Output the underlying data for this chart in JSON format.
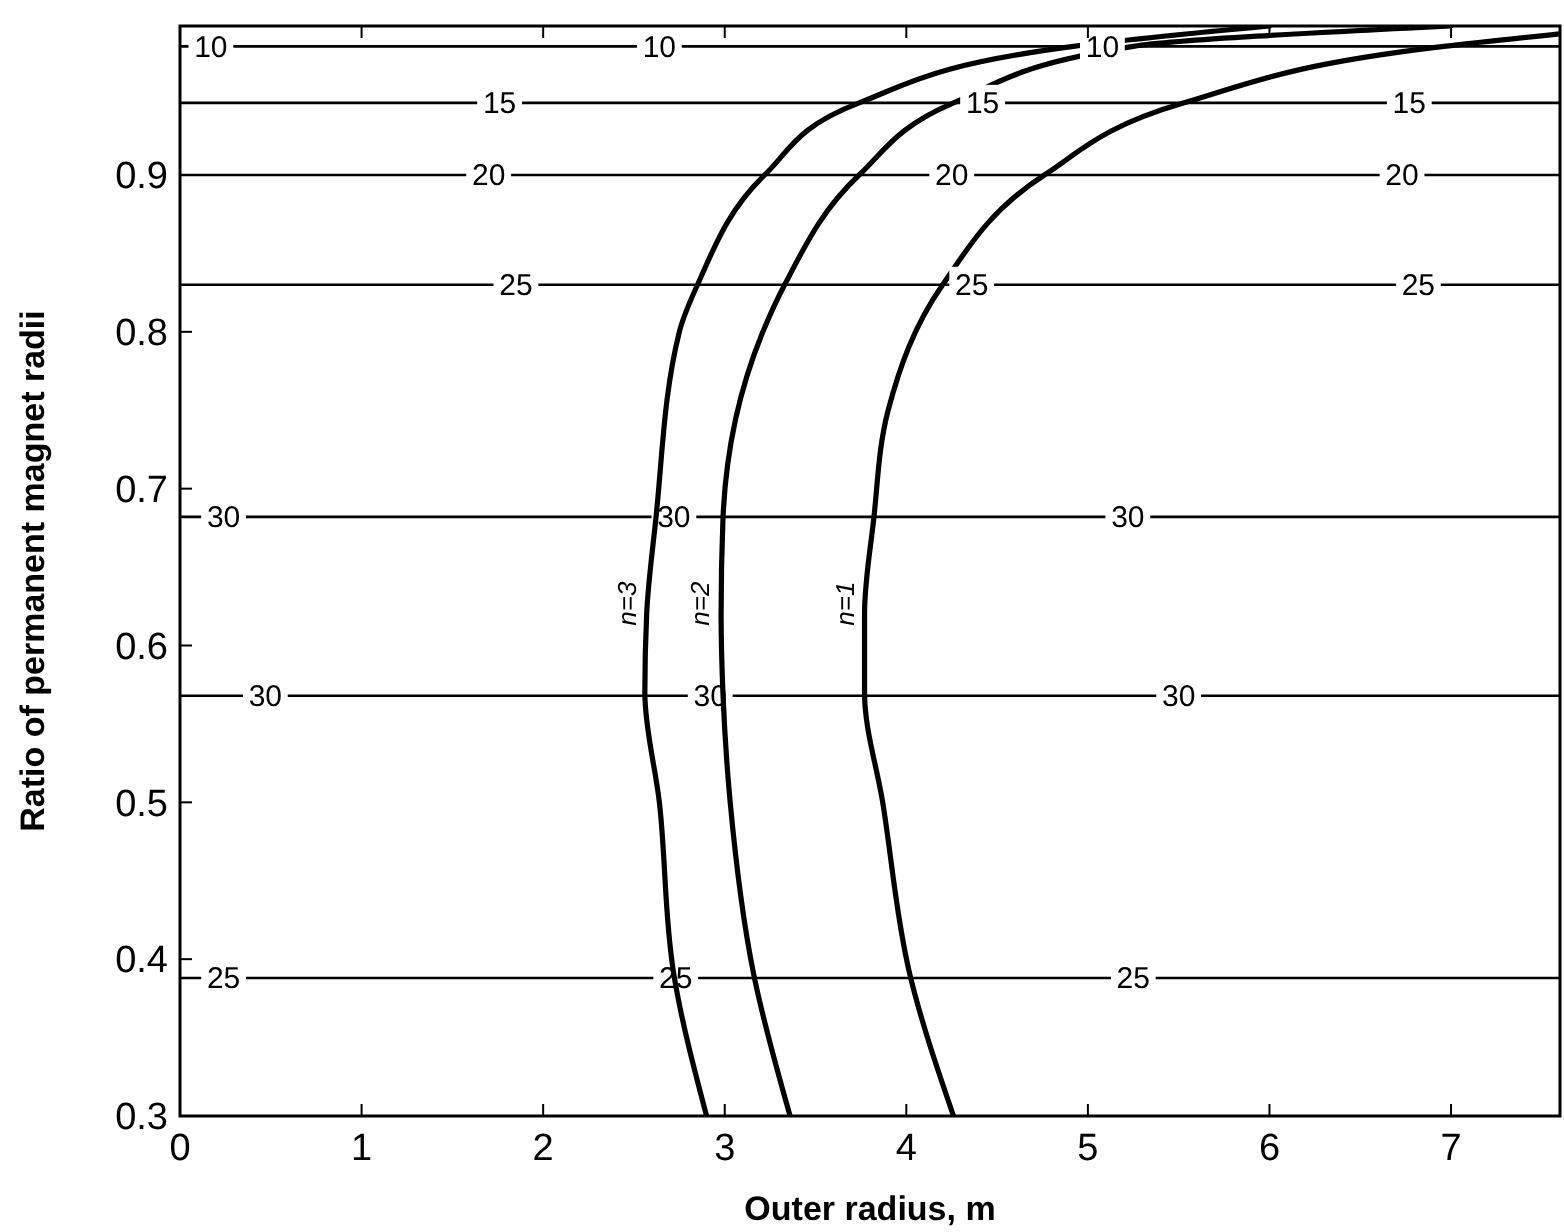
{
  "chart_data": {
    "type": "line",
    "xlabel": "Outer radius, m",
    "ylabel": "Ratio of permanent magnet radii",
    "xlim": [
      0,
      7.6
    ],
    "ylim": [
      0.3,
      0.995
    ],
    "xticks": [
      0,
      1,
      2,
      3,
      4,
      5,
      6,
      7
    ],
    "yticks": [
      0.3,
      0.4,
      0.5,
      0.6,
      0.7,
      0.8,
      0.9
    ],
    "grid": false,
    "marker": "none",
    "line_style": "solid",
    "series": [
      {
        "name": "n=3",
        "color": "#000000",
        "x": [
          2.9,
          2.72,
          2.64,
          2.56,
          2.57,
          2.62,
          2.75,
          2.85,
          3.22,
          3.74,
          4.92,
          6.0
        ],
        "values": [
          0.3,
          0.39,
          0.5,
          0.57,
          0.62,
          0.68,
          0.8,
          0.83,
          0.9,
          0.946,
          0.982,
          0.995
        ]
      },
      {
        "name": "n=2",
        "color": "#000000",
        "x": [
          3.36,
          3.16,
          3.03,
          2.99,
          2.98,
          2.99,
          3.21,
          3.33,
          3.74,
          4.26,
          5.25,
          7.0
        ],
        "values": [
          0.3,
          0.39,
          0.5,
          0.57,
          0.62,
          0.68,
          0.8,
          0.83,
          0.9,
          0.946,
          0.982,
          0.995
        ]
      },
      {
        "name": "n=1",
        "color": "#000000",
        "x": [
          4.26,
          4.02,
          3.87,
          3.77,
          3.77,
          3.82,
          3.9,
          4.2,
          4.76,
          5.53,
          6.96,
          7.6
        ],
        "values": [
          0.3,
          0.39,
          0.5,
          0.57,
          0.62,
          0.68,
          0.75,
          0.83,
          0.9,
          0.946,
          0.982,
          0.99
        ]
      }
    ],
    "ref_lines": [
      {
        "axis": "y",
        "value": 0.982,
        "color": "#000000"
      },
      {
        "axis": "y",
        "value": 0.946,
        "color": "#000000"
      },
      {
        "axis": "y",
        "value": 0.9,
        "color": "#000000"
      },
      {
        "axis": "y",
        "value": 0.83,
        "color": "#000000"
      },
      {
        "axis": "y",
        "value": 0.682,
        "color": "#000000"
      },
      {
        "axis": "y",
        "value": 0.568,
        "color": "#000000"
      },
      {
        "axis": "y",
        "value": 0.388,
        "color": "#000000"
      }
    ],
    "annotations": [
      {
        "text": "10",
        "x": 0.17,
        "y": 0.982
      },
      {
        "text": "10",
        "x": 2.64,
        "y": 0.982
      },
      {
        "text": "10",
        "x": 5.08,
        "y": 0.982
      },
      {
        "text": "15",
        "x": 1.76,
        "y": 0.946
      },
      {
        "text": "15",
        "x": 4.42,
        "y": 0.946
      },
      {
        "text": "15",
        "x": 6.77,
        "y": 0.946
      },
      {
        "text": "20",
        "x": 1.7,
        "y": 0.9
      },
      {
        "text": "20",
        "x": 4.25,
        "y": 0.9
      },
      {
        "text": "20",
        "x": 6.73,
        "y": 0.9
      },
      {
        "text": "25",
        "x": 1.85,
        "y": 0.83
      },
      {
        "text": "25",
        "x": 4.36,
        "y": 0.83
      },
      {
        "text": "25",
        "x": 6.82,
        "y": 0.83
      },
      {
        "text": "30",
        "x": 0.24,
        "y": 0.682
      },
      {
        "text": "30",
        "x": 2.72,
        "y": 0.682
      },
      {
        "text": "30",
        "x": 5.22,
        "y": 0.682
      },
      {
        "text": "30",
        "x": 0.47,
        "y": 0.568
      },
      {
        "text": "30",
        "x": 2.92,
        "y": 0.568
      },
      {
        "text": "30",
        "x": 5.5,
        "y": 0.568
      },
      {
        "text": "25",
        "x": 0.24,
        "y": 0.388
      },
      {
        "text": "25",
        "x": 2.73,
        "y": 0.388
      },
      {
        "text": "25",
        "x": 5.25,
        "y": 0.388
      }
    ]
  }
}
